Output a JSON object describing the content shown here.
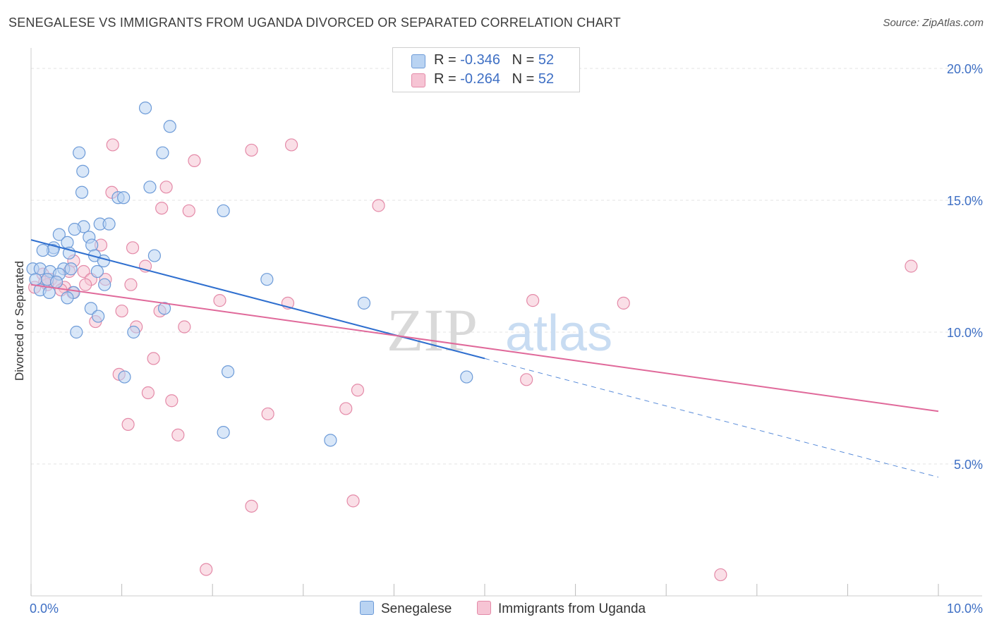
{
  "header": {
    "title": "SENEGALESE VS IMMIGRANTS FROM UGANDA DIVORCED OR SEPARATED CORRELATION CHART",
    "source": "Source: ZipAtlas.com"
  },
  "legend": {
    "rows": [
      {
        "r_label": "R = ",
        "r_value": "-0.346",
        "n_label": "N = ",
        "n_value": "52"
      },
      {
        "r_label": "R = ",
        "r_value": "-0.264",
        "n_label": "N = ",
        "n_value": "52"
      }
    ]
  },
  "watermark": {
    "zip": "ZIP",
    "atlas": "atlas"
  },
  "colors": {
    "blue_fill": "#b9d3f2",
    "blue_stroke": "#6d9bd8",
    "blue_line": "#2f6fcf",
    "pink_fill": "#f6c4d4",
    "pink_stroke": "#e48aa8",
    "pink_line": "#e0699a",
    "axis_text": "#3e6fc4",
    "grid": "#e3e3e3"
  },
  "chart_data": {
    "type": "scatter",
    "title": "SENEGALESE VS IMMIGRANTS FROM UGANDA DIVORCED OR SEPARATED CORRELATION CHART",
    "xlabel": "",
    "ylabel": "Divorced or Separated",
    "xlim": [
      0,
      10
    ],
    "ylim": [
      0,
      20
    ],
    "x_tick_labels": [
      "0.0%",
      "10.0%"
    ],
    "y_ticks": [
      5,
      10,
      15,
      20
    ],
    "y_tick_labels": [
      "5.0%",
      "10.0%",
      "15.0%",
      "20.0%"
    ],
    "series": [
      {
        "name": "Senegalese",
        "r": -0.346,
        "n": 52,
        "points": [
          [
            1.26,
            18.5
          ],
          [
            1.53,
            17.8
          ],
          [
            0.53,
            16.8
          ],
          [
            1.45,
            16.8
          ],
          [
            0.57,
            16.1
          ],
          [
            1.31,
            15.5
          ],
          [
            0.56,
            15.3
          ],
          [
            0.96,
            15.1
          ],
          [
            1.02,
            15.1
          ],
          [
            2.12,
            14.6
          ],
          [
            0.76,
            14.1
          ],
          [
            0.86,
            14.1
          ],
          [
            0.58,
            14.0
          ],
          [
            0.48,
            13.9
          ],
          [
            0.31,
            13.7
          ],
          [
            0.64,
            13.6
          ],
          [
            0.4,
            13.4
          ],
          [
            0.67,
            13.3
          ],
          [
            0.25,
            13.2
          ],
          [
            0.24,
            13.1
          ],
          [
            0.13,
            13.1
          ],
          [
            0.42,
            13.0
          ],
          [
            0.7,
            12.9
          ],
          [
            1.36,
            12.9
          ],
          [
            0.8,
            12.7
          ],
          [
            0.02,
            12.4
          ],
          [
            0.1,
            12.4
          ],
          [
            0.21,
            12.3
          ],
          [
            0.36,
            12.4
          ],
          [
            0.44,
            12.4
          ],
          [
            0.73,
            12.3
          ],
          [
            0.31,
            12.2
          ],
          [
            0.18,
            12.0
          ],
          [
            2.6,
            12.0
          ],
          [
            0.81,
            11.8
          ],
          [
            0.1,
            11.6
          ],
          [
            0.2,
            11.5
          ],
          [
            0.47,
            11.5
          ],
          [
            0.4,
            11.3
          ],
          [
            3.67,
            11.1
          ],
          [
            0.66,
            10.9
          ],
          [
            1.47,
            10.9
          ],
          [
            0.74,
            10.6
          ],
          [
            0.5,
            10.0
          ],
          [
            1.13,
            10.0
          ],
          [
            2.17,
            8.5
          ],
          [
            1.03,
            8.3
          ],
          [
            4.8,
            8.3
          ],
          [
            2.12,
            6.2
          ],
          [
            3.3,
            5.9
          ],
          [
            0.05,
            12.0
          ],
          [
            0.28,
            11.9
          ]
        ],
        "trend": {
          "x0": 0.0,
          "y0": 13.5,
          "x_solid_end": 5.0,
          "x1": 10.0,
          "y1": 4.5
        }
      },
      {
        "name": "Immigrants from Uganda",
        "r": -0.264,
        "n": 52,
        "points": [
          [
            2.87,
            17.1
          ],
          [
            0.9,
            17.1
          ],
          [
            2.43,
            16.9
          ],
          [
            1.8,
            16.5
          ],
          [
            1.49,
            15.5
          ],
          [
            0.89,
            15.3
          ],
          [
            1.44,
            14.7
          ],
          [
            1.74,
            14.6
          ],
          [
            3.83,
            14.8
          ],
          [
            0.77,
            13.3
          ],
          [
            1.12,
            13.2
          ],
          [
            0.47,
            12.7
          ],
          [
            1.26,
            12.5
          ],
          [
            9.7,
            12.5
          ],
          [
            0.42,
            12.3
          ],
          [
            0.13,
            12.2
          ],
          [
            0.58,
            12.3
          ],
          [
            0.22,
            12.0
          ],
          [
            0.66,
            12.0
          ],
          [
            0.82,
            12.0
          ],
          [
            0.28,
            11.9
          ],
          [
            0.6,
            11.8
          ],
          [
            1.1,
            11.8
          ],
          [
            0.18,
            11.8
          ],
          [
            0.37,
            11.7
          ],
          [
            0.04,
            11.7
          ],
          [
            0.33,
            11.6
          ],
          [
            0.46,
            11.5
          ],
          [
            5.53,
            11.2
          ],
          [
            6.53,
            11.1
          ],
          [
            2.08,
            11.2
          ],
          [
            2.83,
            11.1
          ],
          [
            1.0,
            10.8
          ],
          [
            1.42,
            10.8
          ],
          [
            1.16,
            10.2
          ],
          [
            1.69,
            10.2
          ],
          [
            0.71,
            10.4
          ],
          [
            1.35,
            9.0
          ],
          [
            0.97,
            8.4
          ],
          [
            5.46,
            8.2
          ],
          [
            3.6,
            7.8
          ],
          [
            1.29,
            7.7
          ],
          [
            1.55,
            7.4
          ],
          [
            3.47,
            7.1
          ],
          [
            2.61,
            6.9
          ],
          [
            1.07,
            6.5
          ],
          [
            1.62,
            6.1
          ],
          [
            2.43,
            3.4
          ],
          [
            3.55,
            3.6
          ],
          [
            1.93,
            1.0
          ],
          [
            7.6,
            0.8
          ],
          [
            0.15,
            11.9
          ]
        ],
        "trend": {
          "x0": 0.0,
          "y0": 11.8,
          "x1": 10.0,
          "y1": 7.0
        }
      }
    ]
  },
  "bottom_legend": {
    "items": [
      {
        "label": "Senegalese"
      },
      {
        "label": "Immigrants from Uganda"
      }
    ]
  }
}
